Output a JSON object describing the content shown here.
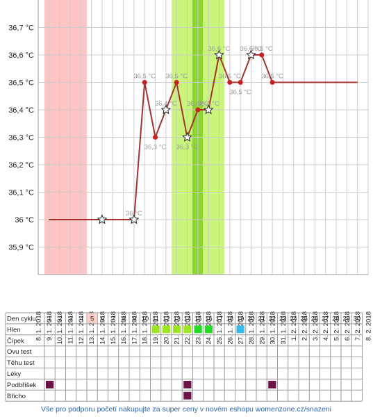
{
  "chart_data": {
    "type": "line",
    "categories": [
      "8. 1. 2018",
      "9. 1. 2018",
      "10. 1. 2018",
      "11. 1. 2018",
      "12. 1. 2018",
      "13. 1. 2018",
      "14. 1. 2018",
      "15. 1. 2018",
      "16. 1. 2018",
      "17. 1. 2018",
      "18. 1. 2018",
      "19. 1. 2018",
      "20. 1. 2018",
      "21. 1. 2018",
      "22. 1. 2018",
      "23. 1. 2018",
      "24. 1. 2018",
      "25. 1. 2018",
      "26. 1. 2018",
      "27. 1. 2018",
      "28. 1. 2018",
      "29. 1. 2018",
      "30. 1. 2018",
      "31. 1. 2018",
      "1. 2. 2018",
      "2. 2. 2018",
      "3. 2. 2018",
      "4. 2. 2018",
      "5. 2. 2018",
      "6. 2. 2018",
      "7. 2. 2018",
      "8. 2. 2018"
    ],
    "series": [
      {
        "color": "#a8302c",
        "values": [
          null,
          36,
          36,
          36,
          36,
          36,
          36,
          36,
          36,
          36,
          36.5,
          36.3,
          36.4,
          36.5,
          36.3,
          36.4,
          36.4,
          36.6,
          36.5,
          36.5,
          36.6,
          36.6,
          36.5,
          36.5,
          36.5,
          36.5,
          36.5,
          36.5,
          36.5,
          36.5,
          36.5,
          null
        ],
        "markers": [
          "none",
          "none",
          "none",
          "none",
          "none",
          "none",
          "star",
          "none",
          "none",
          "star",
          "dot",
          "dot",
          "star",
          "dot",
          "star",
          "dot",
          "star",
          "star",
          "dot",
          "dot",
          "star",
          "dot",
          "dot",
          "none",
          "none",
          "none",
          "none",
          "none",
          "none",
          "none",
          "none",
          "none"
        ],
        "value_labels": [
          null,
          null,
          null,
          null,
          null,
          null,
          null,
          null,
          null,
          "36 °C",
          "36,5 °C",
          "36,3 °C",
          "36,4 °C",
          "36,5 °C",
          "36,3 °C",
          "36,4 °C",
          "36,4 °C",
          "36,6 °C",
          "36,5 °C",
          "36,5 °C",
          "36,6 °C",
          "36,6 °C",
          "36,5 °C",
          null,
          null,
          null,
          null,
          null,
          null,
          null,
          null,
          null
        ]
      }
    ],
    "ylim": [
      35.8,
      36.8
    ],
    "yticks": [
      {
        "value": 35.9,
        "label": "35,9 °C"
      },
      {
        "value": 36,
        "label": "36 °C"
      },
      {
        "value": 36.1,
        "label": "36,1 °C"
      },
      {
        "value": 36.2,
        "label": "36,2 °C"
      },
      {
        "value": 36.3,
        "label": "36,3 °C"
      },
      {
        "value": 36.4,
        "label": "36,4 °C"
      },
      {
        "value": 36.5,
        "label": "36,5 °C"
      },
      {
        "value": 36.6,
        "label": "36,6 °C"
      },
      {
        "value": 36.7,
        "label": "36,7 °C"
      }
    ],
    "grid": true
  },
  "table": {
    "header": {
      "label": "Den cyklu",
      "days": [
        1,
        2,
        3,
        4,
        5,
        6,
        7,
        8,
        9,
        10,
        11,
        12,
        13,
        14,
        15,
        16,
        17,
        18,
        19,
        20,
        21,
        22,
        23,
        24,
        25,
        26,
        27,
        28,
        29,
        30
      ],
      "highlight": 5
    },
    "rows": [
      {
        "label": "Hlen",
        "marks": [
          {
            "day": 11,
            "color": "#9be61e"
          },
          {
            "day": 12,
            "color": "#9be61e"
          },
          {
            "day": 13,
            "color": "#9be61e"
          },
          {
            "day": 14,
            "color": "#9be61e"
          },
          {
            "day": 15,
            "color": "#22dd22"
          },
          {
            "day": 16,
            "color": "#22dd22"
          },
          {
            "day": 19,
            "color": "#33bbee"
          }
        ]
      },
      {
        "label": "Čípek",
        "marks": []
      },
      {
        "label": "Ovu test",
        "marks": []
      },
      {
        "label": "Těhu test",
        "marks": []
      },
      {
        "label": "Léky",
        "marks": []
      },
      {
        "label": "Podbřišek",
        "marks": [
          {
            "day": 1,
            "color": "#6b1246"
          },
          {
            "day": 14,
            "color": "#6b1246"
          },
          {
            "day": 22,
            "color": "#6b1246"
          }
        ]
      },
      {
        "label": "Břicho",
        "marks": [
          {
            "day": 14,
            "color": "#6b1246"
          }
        ]
      }
    ]
  },
  "footer": "Vše pro podporu početí nakupujte za super ceny v novém eshopu womenzone.cz/snazeni"
}
